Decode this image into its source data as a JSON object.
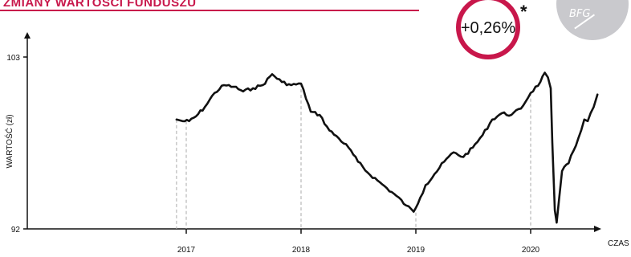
{
  "header": {
    "title": "ZMIANY WARTOŚCI FUNDUSZU"
  },
  "badge": {
    "value": "+0,26%",
    "note_mark": "*"
  },
  "logo": {
    "text": "BFG"
  },
  "colors": {
    "accent": "#c8174b",
    "line": "#111111",
    "logo_bg": "#c9c9cd"
  },
  "chart_data": {
    "type": "line",
    "xlabel": "CZAS",
    "ylabel": "WARTOŚĆ (zł)",
    "x_ticks": [
      "2017",
      "2018",
      "2019",
      "2020"
    ],
    "y_ticks": [
      92,
      103
    ],
    "ylim": [
      92,
      103
    ],
    "xlim": [
      "2016-01",
      "2020-08"
    ],
    "series": [
      {
        "values": [
          [
            "2016-12-01",
            99.0
          ],
          [
            "2016-12-20",
            98.9
          ],
          [
            "2017-01-10",
            98.9
          ],
          [
            "2017-02-01",
            99.2
          ],
          [
            "2017-03-01",
            99.8
          ],
          [
            "2017-04-01",
            100.7
          ],
          [
            "2017-05-01",
            101.2
          ],
          [
            "2017-06-01",
            101.1
          ],
          [
            "2017-07-01",
            100.8
          ],
          [
            "2017-08-01",
            101.0
          ],
          [
            "2017-09-01",
            101.2
          ],
          [
            "2017-10-01",
            101.9
          ],
          [
            "2017-11-01",
            101.4
          ],
          [
            "2017-12-01",
            101.2
          ],
          [
            "2018-01-01",
            101.3
          ],
          [
            "2018-02-01",
            99.5
          ],
          [
            "2018-03-01",
            99.3
          ],
          [
            "2018-04-01",
            98.3
          ],
          [
            "2018-05-01",
            97.8
          ],
          [
            "2018-06-01",
            97.2
          ],
          [
            "2018-07-01",
            96.3
          ],
          [
            "2018-08-01",
            95.6
          ],
          [
            "2018-09-01",
            95.1
          ],
          [
            "2018-10-01",
            94.6
          ],
          [
            "2018-11-01",
            94.1
          ],
          [
            "2018-12-01",
            93.5
          ],
          [
            "2018-12-25",
            93.1
          ],
          [
            "2019-01-15",
            94.0
          ],
          [
            "2019-02-01",
            94.8
          ],
          [
            "2019-03-01",
            95.5
          ],
          [
            "2019-04-01",
            96.3
          ],
          [
            "2019-05-01",
            96.9
          ],
          [
            "2019-06-01",
            96.6
          ],
          [
            "2019-07-01",
            97.2
          ],
          [
            "2019-08-01",
            98.0
          ],
          [
            "2019-09-01",
            99.0
          ],
          [
            "2019-10-01",
            99.4
          ],
          [
            "2019-11-01",
            99.3
          ],
          [
            "2019-12-01",
            99.7
          ],
          [
            "2020-01-01",
            100.7
          ],
          [
            "2020-02-01",
            101.4
          ],
          [
            "2020-02-15",
            102.0
          ],
          [
            "2020-02-25",
            101.7
          ],
          [
            "2020-03-05",
            101.0
          ],
          [
            "2020-03-10",
            97.5
          ],
          [
            "2020-03-18",
            93.2
          ],
          [
            "2020-03-24",
            92.4
          ],
          [
            "2020-04-01",
            94.0
          ],
          [
            "2020-04-10",
            95.7
          ],
          [
            "2020-05-01",
            96.2
          ],
          [
            "2020-06-01",
            97.8
          ],
          [
            "2020-06-20",
            99.0
          ],
          [
            "2020-07-01",
            98.9
          ],
          [
            "2020-07-20",
            99.8
          ],
          [
            "2020-08-01",
            100.6
          ]
        ]
      }
    ]
  }
}
